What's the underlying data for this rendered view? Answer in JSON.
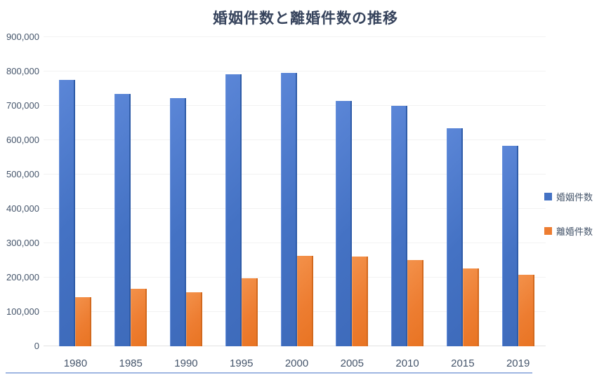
{
  "chart_data": {
    "type": "bar",
    "title": "婚姻件数と離婚件数の推移",
    "xlabel": "",
    "ylabel": "",
    "categories": [
      "1980",
      "1985",
      "1990",
      "1995",
      "2000",
      "2005",
      "2010",
      "2015",
      "2019"
    ],
    "series": [
      {
        "name": "婚姻件数",
        "color": "#4472C4",
        "values": [
          775000,
          735000,
          722000,
          791000,
          797000,
          714000,
          700000,
          635000,
          583000
        ]
      },
      {
        "name": "離婚件数",
        "color": "#ED7D31",
        "values": [
          142000,
          167000,
          158000,
          199000,
          264000,
          262000,
          251000,
          226000,
          209000
        ]
      }
    ],
    "ylim": [
      0,
      900000
    ],
    "ytick_interval": 100000,
    "ytick_labels": [
      "0",
      "100,000",
      "200,000",
      "300,000",
      "400,000",
      "500,000",
      "600,000",
      "700,000",
      "800,000",
      "900,000"
    ],
    "grid": true,
    "legend_position": "right"
  }
}
